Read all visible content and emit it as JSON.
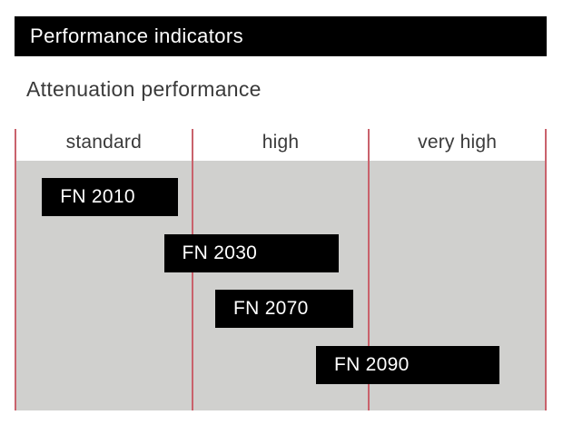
{
  "header": {
    "title": "Performance indicators"
  },
  "subtitle": "Attenuation performance",
  "colors": {
    "accent_red": "#c9626c",
    "panel_gray": "#d0d0ce",
    "title_bar_bg": "#000000",
    "bar_bg": "#000000",
    "bar_text": "#ffffff",
    "text_dark": "#3a3a3a"
  },
  "chart_data": {
    "type": "bar",
    "subtype": "horizontal-range",
    "title": "Attenuation performance",
    "categories": [
      "standard",
      "high",
      "very high"
    ],
    "series": [
      {
        "name": "FN 2010",
        "span_columns": [
          0.15,
          0.92
        ],
        "coverage": "standard"
      },
      {
        "name": "FN 2030",
        "span_columns": [
          0.84,
          1.83
        ],
        "coverage": "standard to high"
      },
      {
        "name": "FN 2070",
        "span_columns": [
          1.13,
          1.91
        ],
        "coverage": "high"
      },
      {
        "name": "FN 2090",
        "span_columns": [
          1.7,
          2.74
        ],
        "coverage": "high to very high"
      }
    ],
    "axis": {
      "columns": 3,
      "column_separators": "red vertical lines",
      "x_range_columns": [
        0,
        3
      ],
      "grid": "off",
      "legend": "none"
    }
  }
}
